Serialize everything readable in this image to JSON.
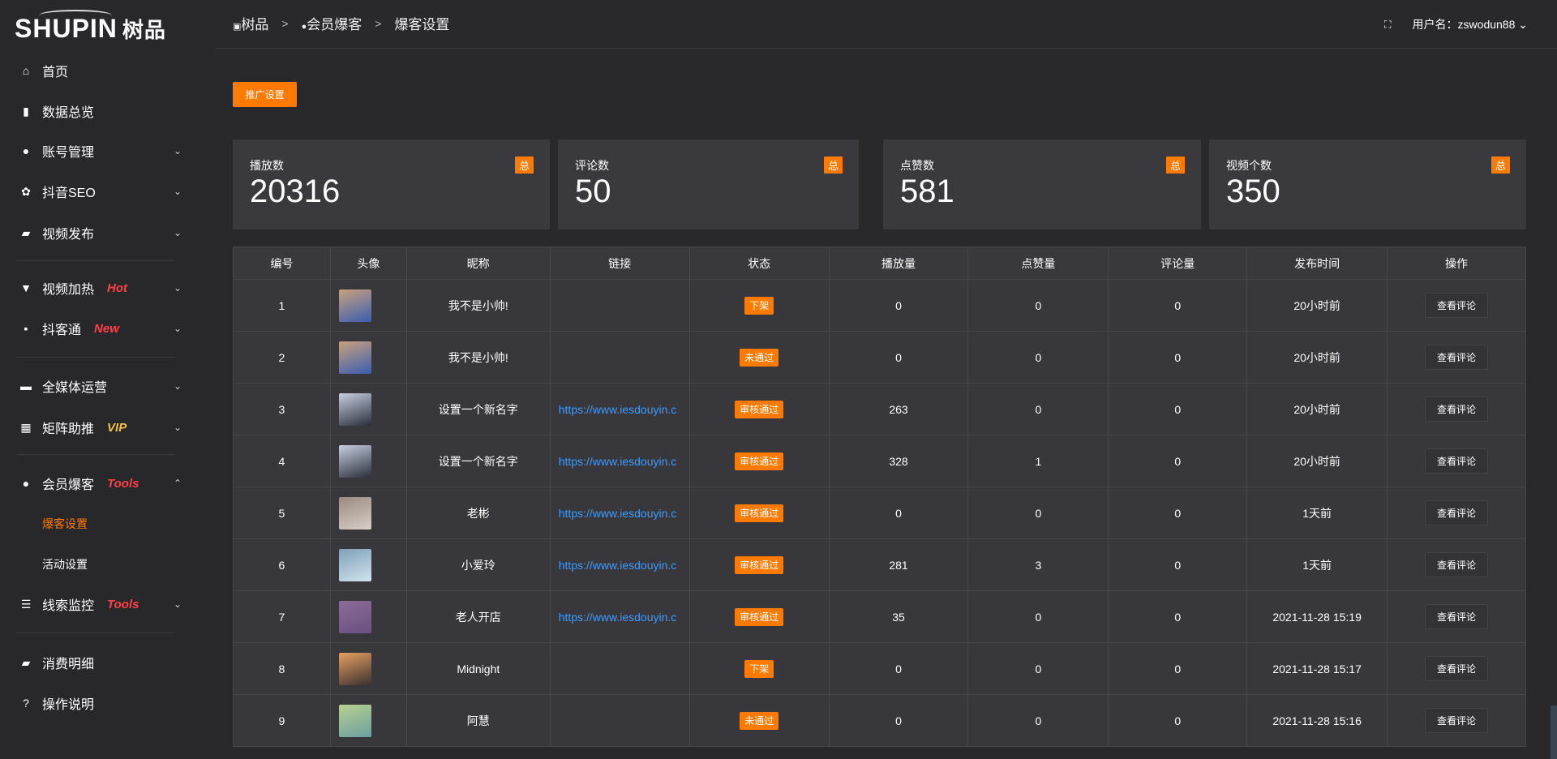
{
  "logo": {
    "text": "SHUPIN",
    "cn": "树品"
  },
  "sidebar": {
    "items": [
      {
        "label": "首页",
        "icon": "home-icon",
        "glyph": "⌂"
      },
      {
        "label": "数据总览",
        "icon": "bar-chart-icon",
        "glyph": "▮"
      },
      {
        "label": "账号管理",
        "icon": "user-icon",
        "glyph": "●",
        "chev": "⌄"
      },
      {
        "label": "抖音SEO",
        "icon": "gear-icon",
        "glyph": "✿",
        "chev": "⌄"
      },
      {
        "label": "视频发布",
        "icon": "video-icon",
        "glyph": "▰",
        "chev": "⌄"
      },
      {
        "label": "视频加热",
        "icon": "heat-icon",
        "glyph": "▼",
        "tag": "Hot",
        "tag_color": "#ff4048",
        "chev": "⌄"
      },
      {
        "label": "抖客通",
        "icon": "message-icon",
        "glyph": "▪",
        "tag": "New",
        "tag_color": "#ff4048",
        "chev": "⌄"
      },
      {
        "label": "全媒体运营",
        "icon": "monitor-icon",
        "glyph": "▬",
        "chev": "⌄"
      },
      {
        "label": "矩阵助推",
        "icon": "grid-icon",
        "glyph": "▦",
        "tag": "VIP",
        "tag_color": "#f6c343",
        "chev": "⌄"
      },
      {
        "label": "会员爆客",
        "icon": "member-icon",
        "glyph": "●",
        "tag": "Tools",
        "tag_color": "#ff4048",
        "chev": "⌃"
      },
      {
        "label": "线索监控",
        "icon": "sliders-icon",
        "glyph": "☰",
        "tag": "Tools",
        "tag_color": "#ff4048",
        "chev": "⌄"
      },
      {
        "label": "消费明细",
        "icon": "wallet-icon",
        "glyph": "▰"
      },
      {
        "label": "操作说明",
        "icon": "help-icon",
        "glyph": "?"
      }
    ],
    "sub_items": [
      {
        "label": "爆客设置",
        "active": true
      },
      {
        "label": "活动设置",
        "active": false
      }
    ]
  },
  "header": {
    "breadcrumb": [
      "树品",
      "会员爆客",
      "爆客设置"
    ],
    "sep": ">",
    "username": "用户名：zswodun88"
  },
  "toolbar": {
    "promo_label": "推广设置"
  },
  "stats": [
    {
      "label": "播放数",
      "value": "20316",
      "badge": "总"
    },
    {
      "label": "评论数",
      "value": "50",
      "badge": "总"
    },
    {
      "label": "点赞数",
      "value": "581",
      "badge": "总"
    },
    {
      "label": "视频个数",
      "value": "350",
      "badge": "总"
    }
  ],
  "table": {
    "headers": [
      "编号",
      "头像",
      "昵称",
      "链接",
      "状态",
      "播放量",
      "点赞量",
      "评论量",
      "发布时间",
      "操作"
    ],
    "action_label": "查看评论",
    "rows": [
      {
        "id": "1",
        "nick": "我不是小帅!",
        "link": "",
        "status": "下架",
        "plays": "0",
        "likes": "0",
        "comments": "0",
        "time": "20小时前",
        "avatar": [
          "#c9a27e",
          "#3a5db0"
        ]
      },
      {
        "id": "2",
        "nick": "我不是小帅!",
        "link": "",
        "status": "未通过",
        "plays": "0",
        "likes": "0",
        "comments": "0",
        "time": "20小时前",
        "avatar": [
          "#c9a27e",
          "#3a5db0"
        ]
      },
      {
        "id": "3",
        "nick": "设置一个新名字",
        "link": "https://www.iesdouyin.c",
        "status": "审核通过",
        "plays": "263",
        "likes": "0",
        "comments": "0",
        "time": "20小时前",
        "avatar": [
          "#c7d0e0",
          "#2a2e3a"
        ]
      },
      {
        "id": "4",
        "nick": "设置一个新名字",
        "link": "https://www.iesdouyin.c",
        "status": "审核通过",
        "plays": "328",
        "likes": "1",
        "comments": "0",
        "time": "20小时前",
        "avatar": [
          "#c7d0e0",
          "#2a2e3a"
        ]
      },
      {
        "id": "5",
        "nick": "老彬",
        "link": "https://www.iesdouyin.c",
        "status": "审核通过",
        "plays": "0",
        "likes": "0",
        "comments": "0",
        "time": "1天前",
        "avatar": [
          "#9a8a80",
          "#d8cfc6"
        ]
      },
      {
        "id": "6",
        "nick": "小爱玲",
        "link": "https://www.iesdouyin.c",
        "status": "审核通过",
        "plays": "281",
        "likes": "3",
        "comments": "0",
        "time": "1天前",
        "avatar": [
          "#7fa0b8",
          "#d0e4ee"
        ]
      },
      {
        "id": "7",
        "nick": "老人开店",
        "link": "https://www.iesdouyin.c",
        "status": "审核通过",
        "plays": "35",
        "likes": "0",
        "comments": "0",
        "time": "2021-11-28 15:19",
        "avatar": [
          "#8a6c98",
          "#6a5080"
        ]
      },
      {
        "id": "8",
        "nick": "Midnight",
        "link": "",
        "status": "下架",
        "plays": "0",
        "likes": "0",
        "comments": "0",
        "time": "2021-11-28 15:17",
        "avatar": [
          "#e8a060",
          "#3a3030"
        ]
      },
      {
        "id": "9",
        "nick": "阿慧",
        "link": "",
        "status": "未通过",
        "plays": "0",
        "likes": "0",
        "comments": "0",
        "time": "2021-11-28 15:16",
        "avatar": [
          "#b8d090",
          "#6aa0a0"
        ]
      }
    ]
  },
  "colors": {
    "accent": "#ff7a00",
    "link": "#3b9cff",
    "active_sub": "#ff7a00"
  }
}
